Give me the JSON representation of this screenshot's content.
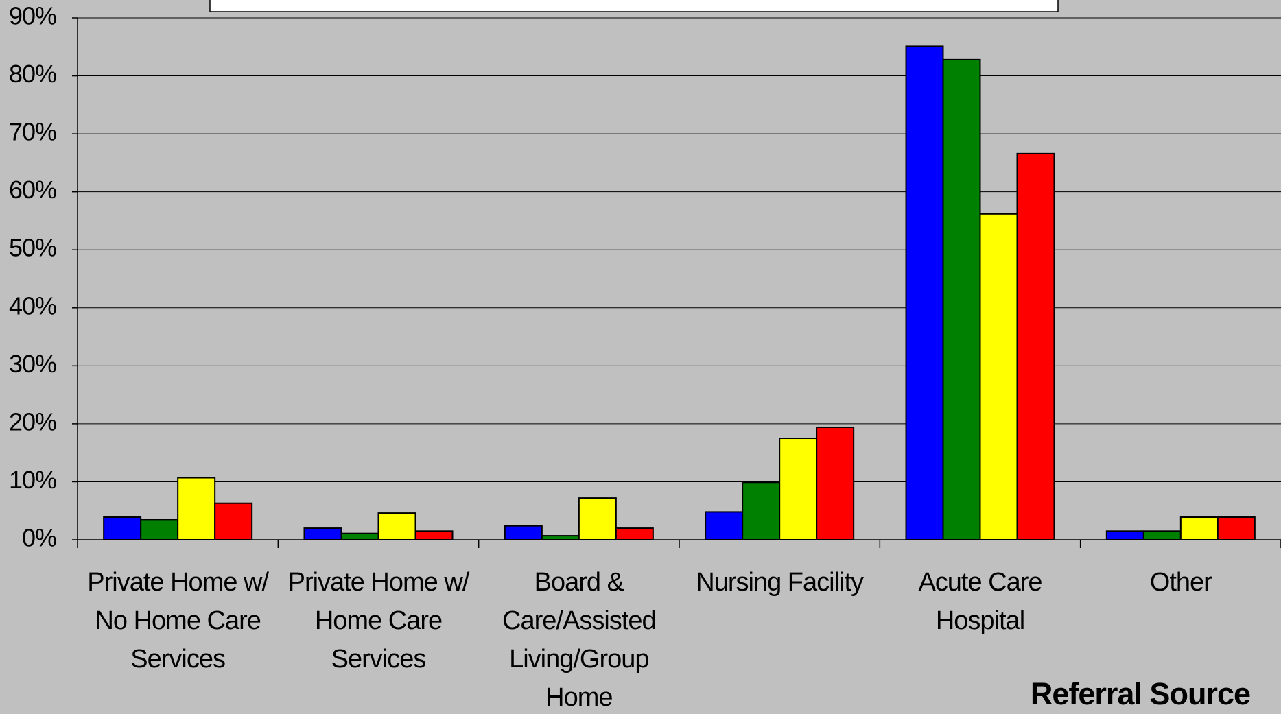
{
  "chart_data": {
    "type": "bar",
    "x_label": "Referral Source",
    "categories": [
      "Private Home w/ No Home Care Services",
      "Private Home w/ Home Care Services",
      "Board & Care/Assisted Living/Group Home",
      "Nursing Facility",
      "Acute Care Hospital",
      "Other"
    ],
    "series": [
      {
        "color": "#0000ff",
        "values": [
          3.9,
          2.0,
          2.4,
          4.8,
          85.1,
          1.5
        ]
      },
      {
        "color": "#008000",
        "values": [
          3.5,
          1.1,
          0.7,
          9.9,
          82.8,
          1.5
        ]
      },
      {
        "color": "#ffff00",
        "values": [
          10.7,
          4.6,
          7.2,
          17.5,
          56.2,
          3.9
        ]
      },
      {
        "color": "#ff0000",
        "values": [
          6.3,
          1.5,
          2.0,
          19.4,
          66.6,
          3.9
        ]
      }
    ],
    "ylim": [
      0,
      90
    ],
    "yticks": [
      {
        "value": 0,
        "label": "0%"
      },
      {
        "value": 10,
        "label": "10%"
      },
      {
        "value": 20,
        "label": "20%"
      },
      {
        "value": 30,
        "label": "30%"
      },
      {
        "value": 40,
        "label": "40%"
      },
      {
        "value": 50,
        "label": "50%"
      },
      {
        "value": 60,
        "label": "60%"
      },
      {
        "value": 70,
        "label": "70%"
      },
      {
        "value": 80,
        "label": "80%"
      },
      {
        "value": 90,
        "label": "90%"
      }
    ],
    "grid": true
  }
}
